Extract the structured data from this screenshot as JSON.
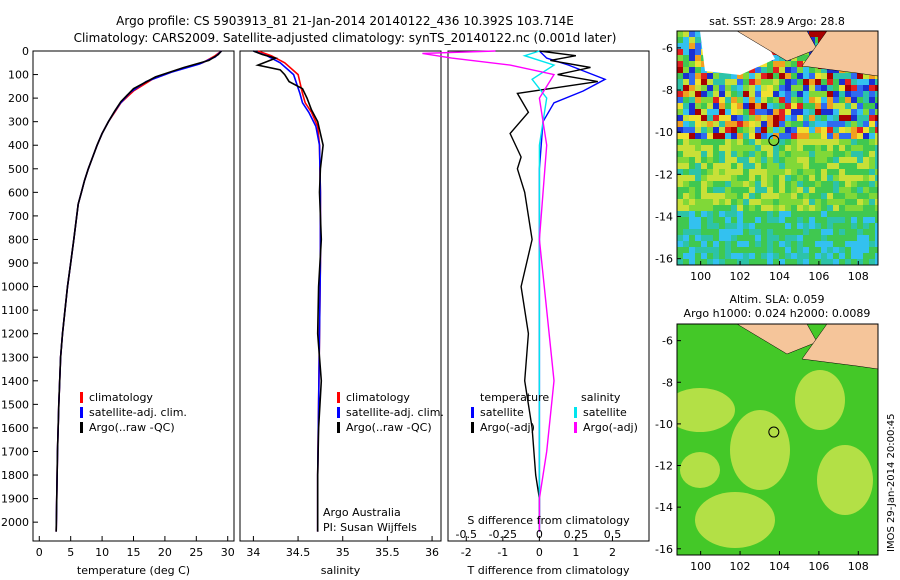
{
  "header": {
    "title_line1": "Argo profile: CS 5903913_81 21-Jan-2014 20140122_436 10.392S 103.714E",
    "title_line2": "Climatology: CARS2009. Satellite-adjusted climatology: synTS_20140122.nc (0.001d later)"
  },
  "colors": {
    "climatology": "#ff0000",
    "satellite": "#0000ff",
    "argo": "#000000",
    "sat_s": "#00e5ee",
    "argo_s": "#ff00ff",
    "land": "#f5c59a",
    "ocean_green": "#44c828"
  },
  "chart_data": [
    {
      "type": "line",
      "id": "temperature_profile",
      "xlabel": "temperature (deg C)",
      "ylim": [
        2080,
        0
      ],
      "xlim": [
        -1,
        31
      ],
      "xticks": [
        0,
        5,
        10,
        15,
        20,
        25,
        30
      ],
      "yticks": [
        0,
        100,
        200,
        300,
        400,
        500,
        600,
        700,
        800,
        900,
        1000,
        1100,
        1200,
        1300,
        1400,
        1500,
        1600,
        1700,
        1800,
        1900,
        2000
      ],
      "legend": [
        "climatology",
        "satellite-adj. clim.",
        "Argo(..raw -QC)"
      ],
      "series": [
        {
          "name": "climatology",
          "color": "#ff0000",
          "x": [
            29,
            28,
            26,
            22,
            18,
            15,
            13,
            12,
            11,
            10,
            9.2,
            8.5,
            7.8,
            7.2,
            6.7,
            6.2,
            5.5,
            5.0,
            4.5,
            4.1,
            3.7,
            3.4,
            3.1,
            2.9,
            2.7
          ],
          "y": [
            0,
            20,
            50,
            80,
            120,
            170,
            220,
            260,
            300,
            350,
            400,
            450,
            500,
            550,
            600,
            650,
            800,
            900,
            1000,
            1100,
            1200,
            1300,
            1500,
            1700,
            2040
          ]
        },
        {
          "name": "satellite-adj. clim.",
          "color": "#0000ff",
          "x": [
            29,
            28,
            25.5,
            21,
            17,
            14.5,
            12.8,
            11.8,
            11,
            10,
            9.2,
            8.5,
            7.8,
            7.2,
            6.7,
            6.2,
            5.5,
            5.0,
            4.5,
            4.1,
            3.7,
            3.4,
            3.1,
            2.9,
            2.7
          ],
          "y": [
            0,
            25,
            55,
            90,
            130,
            175,
            225,
            265,
            300,
            350,
            400,
            450,
            500,
            550,
            600,
            650,
            800,
            900,
            1000,
            1100,
            1200,
            1300,
            1500,
            1700,
            2040
          ]
        },
        {
          "name": "Argo(..raw -QC)",
          "color": "#000000",
          "x": [
            29,
            28.5,
            27,
            23,
            18.5,
            15,
            13,
            12,
            11,
            10,
            9.2,
            8.5,
            7.8,
            7.2,
            6.7,
            6.2,
            5.5,
            5.0,
            4.5,
            4.1,
            3.7,
            3.4,
            3.1,
            2.9,
            2.7
          ],
          "y": [
            0,
            15,
            40,
            70,
            110,
            160,
            215,
            255,
            300,
            350,
            400,
            450,
            500,
            550,
            600,
            650,
            800,
            900,
            1000,
            1100,
            1200,
            1300,
            1500,
            1700,
            2040
          ]
        }
      ]
    },
    {
      "type": "line",
      "id": "salinity_profile",
      "xlabel": "salinity",
      "ylim": [
        2080,
        0
      ],
      "xlim": [
        33.85,
        36.1
      ],
      "xticks": [
        34,
        34.5,
        35,
        35.5,
        36
      ],
      "legend": [
        "climatology",
        "satellite-adj. clim.",
        "Argo(..raw -QC)"
      ],
      "annotation": [
        "Argo Australia",
        "PI: Susan Wijffels"
      ],
      "series": [
        {
          "name": "climatology",
          "color": "#ff0000",
          "x": [
            34.05,
            34.2,
            34.35,
            34.5,
            34.55,
            34.58,
            34.65,
            34.72,
            34.74,
            34.75,
            34.75,
            34.74,
            34.73,
            34.72,
            34.72
          ],
          "y": [
            0,
            20,
            50,
            100,
            180,
            220,
            260,
            320,
            400,
            600,
            900,
            1200,
            1500,
            1800,
            2040
          ]
        },
        {
          "name": "satellite-adj. clim.",
          "color": "#0000ff",
          "x": [
            34.0,
            34.15,
            34.3,
            34.45,
            34.52,
            34.55,
            34.62,
            34.7,
            34.74,
            34.75,
            34.75,
            34.74,
            34.73,
            34.72,
            34.72
          ],
          "y": [
            0,
            20,
            50,
            100,
            180,
            220,
            260,
            320,
            400,
            600,
            900,
            1200,
            1500,
            1800,
            2040
          ]
        },
        {
          "name": "Argo(..raw -QC)",
          "color": "#000000",
          "x": [
            34.0,
            34.1,
            34.25,
            34.05,
            34.3,
            34.35,
            34.4,
            34.55,
            34.6,
            34.65,
            34.72,
            34.78,
            34.75,
            34.74,
            34.76,
            34.73,
            34.72,
            34.76,
            34.73,
            34.72,
            34.72
          ],
          "y": [
            0,
            15,
            30,
            60,
            80,
            100,
            130,
            160,
            200,
            250,
            300,
            400,
            500,
            600,
            800,
            1000,
            1200,
            1400,
            1600,
            1800,
            2040
          ]
        }
      ]
    },
    {
      "type": "line",
      "id": "difference_profile",
      "xlabel": "T difference from climatology",
      "xlabel_top": "S difference from climatology",
      "xlim": [
        -2.5,
        3
      ],
      "xticks": [
        -2,
        -1,
        0,
        1,
        2
      ],
      "xticks_top": [
        "-0.5",
        "-0.25",
        "0",
        "0.25",
        "0.5"
      ],
      "legend_left_title": "temperature",
      "legend_right_title": "salinity",
      "legend_left": [
        "satellite",
        "Argo(-adj)"
      ],
      "legend_right": [
        "satellite",
        "Argo(-adj)"
      ],
      "series": [
        {
          "name": "T satellite",
          "color": "#0000ff",
          "x": [
            0,
            0.2,
            0.8,
            1.8,
            1.2,
            0.4,
            0.1,
            0,
            0,
            0,
            0
          ],
          "y": [
            0,
            30,
            60,
            120,
            170,
            220,
            300,
            500,
            1000,
            1500,
            2040
          ]
        },
        {
          "name": "T Argo(-adj)",
          "color": "#000000",
          "x": [
            0,
            1.0,
            0.3,
            1.4,
            0.5,
            1.6,
            -0.6,
            -0.3,
            -0.8,
            -0.5,
            -0.6,
            -0.4,
            -0.3,
            -0.2,
            -0.5,
            -0.3,
            -0.4,
            -0.2,
            -0.1,
            0,
            0
          ],
          "y": [
            0,
            20,
            40,
            70,
            100,
            130,
            180,
            260,
            350,
            450,
            500,
            600,
            700,
            800,
            1000,
            1200,
            1400,
            1600,
            1800,
            1900,
            2040
          ]
        },
        {
          "name": "S satellite",
          "color": "#00e5ee",
          "x": [
            0,
            -0.1,
            0.1,
            -0.05,
            0.05,
            0,
            0,
            0
          ],
          "y": [
            0,
            20,
            60,
            120,
            200,
            400,
            1000,
            2040
          ]
        },
        {
          "name": "S Argo(-adj)",
          "color": "#ff00ff",
          "x": [
            -0.3,
            -0.8,
            -0.6,
            -0.2,
            0.1,
            0,
            0.05,
            0,
            0.1,
            0.05,
            0,
            0
          ],
          "y": [
            0,
            10,
            30,
            60,
            100,
            200,
            400,
            800,
            1400,
            1700,
            1900,
            2040
          ]
        }
      ]
    },
    {
      "type": "heatmap",
      "id": "sst_map",
      "title": "sat. SST: 28.9 Argo: 28.8",
      "xticks": [
        100,
        102,
        104,
        106,
        108
      ],
      "yticks": [
        -6,
        -8,
        -10,
        -12,
        -14,
        -16
      ],
      "xlim": [
        98.8,
        109
      ],
      "ylim": [
        -16.3,
        -5.2
      ],
      "argo_position": {
        "lon": 103.714,
        "lat": -10.392
      }
    },
    {
      "type": "heatmap",
      "id": "sla_map",
      "title_line1": "Altim. SLA: 0.059",
      "title_line2": "Argo h1000: 0.024 h2000: 0.0089",
      "xticks": [
        100,
        102,
        104,
        106,
        108
      ],
      "yticks": [
        -6,
        -8,
        -10,
        -12,
        -14,
        -16
      ],
      "xlim": [
        98.8,
        109
      ],
      "ylim": [
        -16.3,
        -5.2
      ],
      "argo_position": {
        "lon": 103.714,
        "lat": -10.392
      }
    }
  ],
  "watermark": "IMOS 29-Jan-2014 20:00:45"
}
